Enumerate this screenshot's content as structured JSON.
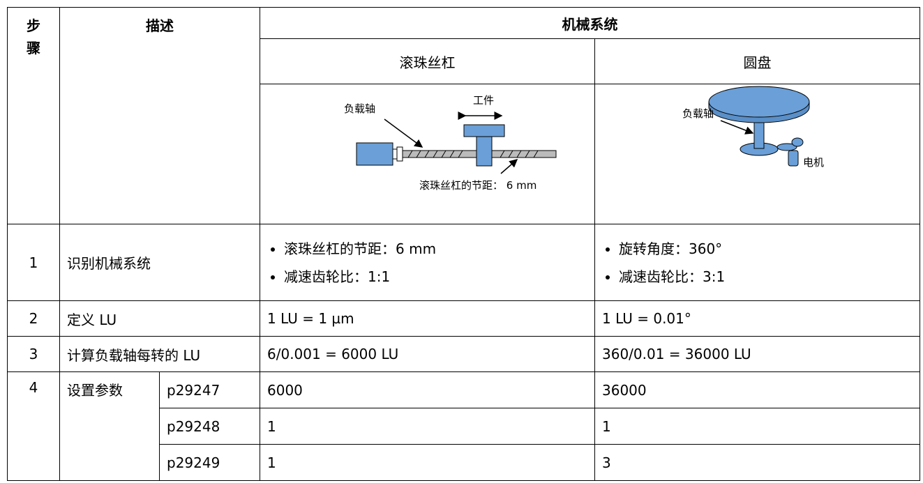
{
  "header": {
    "step": "步骤",
    "description": "描述",
    "mechanical_system": "机械系统",
    "ballscrew": "滚珠丝杠",
    "disc": "圆盘"
  },
  "diagrams": {
    "ballscrew": {
      "load_axis": "负载轴",
      "workpiece": "工件",
      "pitch": "滚珠丝杠的节距： 6 mm"
    },
    "disc": {
      "load_axis": "负载轴",
      "motor": "电机"
    }
  },
  "rows": [
    {
      "step": "1",
      "description": "识别机械系统",
      "ballscrew": [
        "滚珠丝杠的节距：6 mm",
        "减速齿轮比：1:1"
      ],
      "disc": [
        "旋转角度：360°",
        "减速齿轮比：3:1"
      ]
    },
    {
      "step": "2",
      "description": "定义 LU",
      "ballscrew": "1 LU = 1 µm",
      "disc": "1 LU = 0.01°"
    },
    {
      "step": "3",
      "description": "计算负载轴每转的 LU",
      "ballscrew": "6/0.001 = 6000 LU",
      "disc": "360/0.01 = 36000 LU"
    },
    {
      "step": "4",
      "description": "设置参数",
      "parameters": [
        {
          "name": "p29247",
          "ballscrew": "6000",
          "disc": "36000"
        },
        {
          "name": "p29248",
          "ballscrew": "1",
          "disc": "1"
        },
        {
          "name": "p29249",
          "ballscrew": "1",
          "disc": "3"
        }
      ]
    }
  ]
}
